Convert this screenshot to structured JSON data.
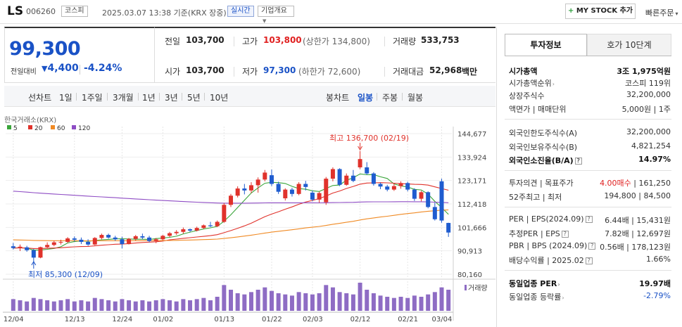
{
  "header": {
    "ticker": "LS",
    "code": "006260",
    "market": "코스피",
    "datetime": "2025.03.07 13:38 기준(KRX 장중)",
    "realtime_badge": "실시간",
    "company_info_btn": "기업개요",
    "mystock_btn": "MY STOCK 추가",
    "quick_order_btn": "빠른주문"
  },
  "price": {
    "current": "99,300",
    "diff_label": "전일대비",
    "diff_value": "4,400",
    "diff_pct": "-4.24%"
  },
  "stats": {
    "prev_close_label": "전일",
    "prev_close": "103,700",
    "high_label": "고가",
    "high": "103,800",
    "upper_limit": "(상한가 134,800)",
    "volume_label": "거래량",
    "volume": "533,753",
    "open_label": "시가",
    "open": "103,700",
    "low_label": "저가",
    "low": "97,300",
    "lower_limit": "(하한가 72,600)",
    "trade_amount_label": "거래대금",
    "trade_amount": "52,968",
    "trade_amount_unit": "백만"
  },
  "periods": {
    "line_label": "선차트",
    "items": [
      "1일",
      "1주일",
      "3개월",
      "1년",
      "3년",
      "5년",
      "10년"
    ],
    "candle_label": "봉차트",
    "candle_items": [
      "일봉",
      "주봉",
      "월봉"
    ],
    "candle_active": "일봉"
  },
  "chart_data": {
    "type": "candlestick",
    "source_label": "한국거래소(KRX)",
    "legend": [
      {
        "name": "5",
        "color": "#3aa53a"
      },
      {
        "name": "20",
        "color": "#e0322b"
      },
      {
        "name": "60",
        "color": "#f08a24"
      },
      {
        "name": "120",
        "color": "#8e4cc4"
      }
    ],
    "y_ticks": [
      "144,677",
      "133,924",
      "123,171",
      "112,418",
      "101,666",
      "90,913",
      "80,160"
    ],
    "ylim": [
      80160,
      144677
    ],
    "x_ticks": [
      "12/04",
      "12/13",
      "12/24",
      "01/02",
      "01/13",
      "01/22",
      "02/03",
      "02/12",
      "02/21",
      "03/04"
    ],
    "high_annotation": "최고 136,700 (02/19)",
    "low_annotation": "최저 85,300 (12/09)",
    "volume_label": "거래량",
    "candles": [
      {
        "o": 93000,
        "h": 94500,
        "l": 91500,
        "c": 92200
      },
      {
        "o": 92200,
        "h": 93800,
        "l": 90800,
        "c": 92800
      },
      {
        "o": 92500,
        "h": 93200,
        "l": 90500,
        "c": 91200
      },
      {
        "o": 91200,
        "h": 91800,
        "l": 85300,
        "c": 87800
      },
      {
        "o": 87800,
        "h": 92800,
        "l": 87500,
        "c": 92600
      },
      {
        "o": 92600,
        "h": 94800,
        "l": 92000,
        "c": 93600
      },
      {
        "o": 93600,
        "h": 95500,
        "l": 93000,
        "c": 94800
      },
      {
        "o": 94800,
        "h": 96000,
        "l": 93800,
        "c": 95000
      },
      {
        "o": 95000,
        "h": 97200,
        "l": 94500,
        "c": 96600
      },
      {
        "o": 96600,
        "h": 97500,
        "l": 95200,
        "c": 96000
      },
      {
        "o": 96000,
        "h": 97000,
        "l": 94000,
        "c": 95000
      },
      {
        "o": 95000,
        "h": 96200,
        "l": 93200,
        "c": 93800
      },
      {
        "o": 93800,
        "h": 97200,
        "l": 93500,
        "c": 96800
      },
      {
        "o": 96800,
        "h": 98800,
        "l": 96200,
        "c": 98200
      },
      {
        "o": 98200,
        "h": 98800,
        "l": 96500,
        "c": 97000
      },
      {
        "o": 97000,
        "h": 97800,
        "l": 95500,
        "c": 96200
      },
      {
        "o": 96200,
        "h": 97400,
        "l": 92000,
        "c": 94000
      },
      {
        "o": 94000,
        "h": 96800,
        "l": 93800,
        "c": 96400
      },
      {
        "o": 96400,
        "h": 98200,
        "l": 95600,
        "c": 97600
      },
      {
        "o": 97600,
        "h": 98800,
        "l": 96200,
        "c": 97000
      },
      {
        "o": 97000,
        "h": 97800,
        "l": 94800,
        "c": 95400
      },
      {
        "o": 95400,
        "h": 96800,
        "l": 94400,
        "c": 96200
      },
      {
        "o": 96200,
        "h": 98200,
        "l": 95800,
        "c": 97800
      },
      {
        "o": 97800,
        "h": 99600,
        "l": 97200,
        "c": 99000
      },
      {
        "o": 99000,
        "h": 100400,
        "l": 98200,
        "c": 99600
      },
      {
        "o": 99600,
        "h": 101600,
        "l": 98800,
        "c": 100800
      },
      {
        "o": 100800,
        "h": 101200,
        "l": 99600,
        "c": 100200
      },
      {
        "o": 100200,
        "h": 102000,
        "l": 99800,
        "c": 101400
      },
      {
        "o": 101400,
        "h": 103000,
        "l": 101000,
        "c": 102600
      },
      {
        "o": 102600,
        "h": 104200,
        "l": 101800,
        "c": 102200
      },
      {
        "o": 102200,
        "h": 104800,
        "l": 101800,
        "c": 104200
      },
      {
        "o": 104200,
        "h": 112800,
        "l": 103800,
        "c": 112000
      },
      {
        "o": 112000,
        "h": 117000,
        "l": 111000,
        "c": 116200
      },
      {
        "o": 116200,
        "h": 120500,
        "l": 115400,
        "c": 119500
      },
      {
        "o": 119500,
        "h": 121600,
        "l": 116800,
        "c": 118600
      },
      {
        "o": 118600,
        "h": 122400,
        "l": 117400,
        "c": 121000
      },
      {
        "o": 121000,
        "h": 124600,
        "l": 117600,
        "c": 123600
      },
      {
        "o": 123600,
        "h": 128000,
        "l": 122800,
        "c": 126800
      },
      {
        "o": 125600,
        "h": 128200,
        "l": 120600,
        "c": 121600
      },
      {
        "o": 121600,
        "h": 122600,
        "l": 117000,
        "c": 118000
      },
      {
        "o": 115000,
        "h": 119600,
        "l": 114000,
        "c": 119000
      },
      {
        "o": 119000,
        "h": 119800,
        "l": 115800,
        "c": 117000
      },
      {
        "o": 117000,
        "h": 122400,
        "l": 116400,
        "c": 121600
      },
      {
        "o": 121600,
        "h": 123000,
        "l": 118600,
        "c": 120200
      },
      {
        "o": 117600,
        "h": 118600,
        "l": 113600,
        "c": 114400
      },
      {
        "o": 114400,
        "h": 118000,
        "l": 113000,
        "c": 117400
      },
      {
        "o": 113200,
        "h": 124800,
        "l": 112000,
        "c": 124000
      },
      {
        "o": 124000,
        "h": 129200,
        "l": 122800,
        "c": 128400
      },
      {
        "o": 128400,
        "h": 128800,
        "l": 120600,
        "c": 121200
      },
      {
        "o": 121200,
        "h": 126400,
        "l": 120800,
        "c": 125400
      },
      {
        "o": 125400,
        "h": 128000,
        "l": 122400,
        "c": 123000
      },
      {
        "o": 129200,
        "h": 136700,
        "l": 128400,
        "c": 133000
      },
      {
        "o": 129200,
        "h": 131600,
        "l": 125800,
        "c": 126400
      },
      {
        "o": 126400,
        "h": 127000,
        "l": 120800,
        "c": 121600
      },
      {
        "o": 121600,
        "h": 122200,
        "l": 119200,
        "c": 120400
      },
      {
        "o": 120400,
        "h": 121200,
        "l": 118200,
        "c": 119000
      },
      {
        "o": 119000,
        "h": 121800,
        "l": 118400,
        "c": 120600
      },
      {
        "o": 120600,
        "h": 122800,
        "l": 119400,
        "c": 122000
      },
      {
        "o": 122000,
        "h": 122600,
        "l": 118200,
        "c": 119000
      },
      {
        "o": 119000,
        "h": 119600,
        "l": 113800,
        "c": 114800
      },
      {
        "o": 114800,
        "h": 118400,
        "l": 113600,
        "c": 117800
      },
      {
        "o": 117800,
        "h": 118200,
        "l": 110400,
        "c": 111000
      },
      {
        "o": 111000,
        "h": 113000,
        "l": 104800,
        "c": 105400
      },
      {
        "o": 122800,
        "h": 124000,
        "l": 103800,
        "c": 104800
      },
      {
        "o": 103700,
        "h": 103800,
        "l": 97300,
        "c": 99300
      }
    ],
    "volumes": [
      10,
      9,
      8,
      11,
      10,
      9,
      8,
      9,
      10,
      8,
      9,
      8,
      11,
      10,
      9,
      8,
      10,
      9,
      8,
      9,
      8,
      9,
      10,
      9,
      8,
      10,
      9,
      10,
      11,
      9,
      12,
      22,
      18,
      15,
      14,
      16,
      18,
      20,
      17,
      15,
      14,
      13,
      16,
      15,
      14,
      15,
      22,
      20,
      16,
      15,
      14,
      24,
      18,
      15,
      13,
      12,
      11,
      12,
      11,
      13,
      12,
      14,
      16,
      20,
      18
    ]
  },
  "right_panel": {
    "tab_active": "투자정보",
    "tab_other": "호가 10단계",
    "g1": [
      {
        "label": "시가총액",
        "value": "3조 1,975억원"
      },
      {
        "label": "시가총액순위",
        "value": "코스피 119위"
      },
      {
        "label": "상장주식수",
        "value": "32,200,000"
      },
      {
        "label": "액면가 | 매매단위",
        "value": "5,000원 | 1주"
      }
    ],
    "g2": [
      {
        "label": "외국인한도주식수(A)",
        "value": "32,200,000"
      },
      {
        "label": "외국인보유주식수(B)",
        "value": "4,821,254"
      },
      {
        "label": "외국인소진율(B/A)",
        "value": "14.97%"
      }
    ],
    "g3": [
      {
        "label": "투자의견 | 목표주가",
        "value_red": "4.00매수",
        "value": "| 161,250"
      },
      {
        "label": "52주최고 | 최저",
        "value": "194,800 | 84,500"
      }
    ],
    "g4": [
      {
        "label": "PER | EPS(2024.09)",
        "value": "6.44배 | 15,431원"
      },
      {
        "label": "추정PER | EPS",
        "value": "7.82배 | 12,697원"
      },
      {
        "label": "PBR | BPS (2024.09)",
        "value": "0.56배 | 178,123원"
      },
      {
        "label": "배당수익률 | 2025.02",
        "value": "1.66%"
      }
    ],
    "g5": [
      {
        "label": "동일업종 PER",
        "value": "19.97배"
      },
      {
        "label": "동일업종 등락률",
        "value": "-2.79%"
      }
    ]
  }
}
